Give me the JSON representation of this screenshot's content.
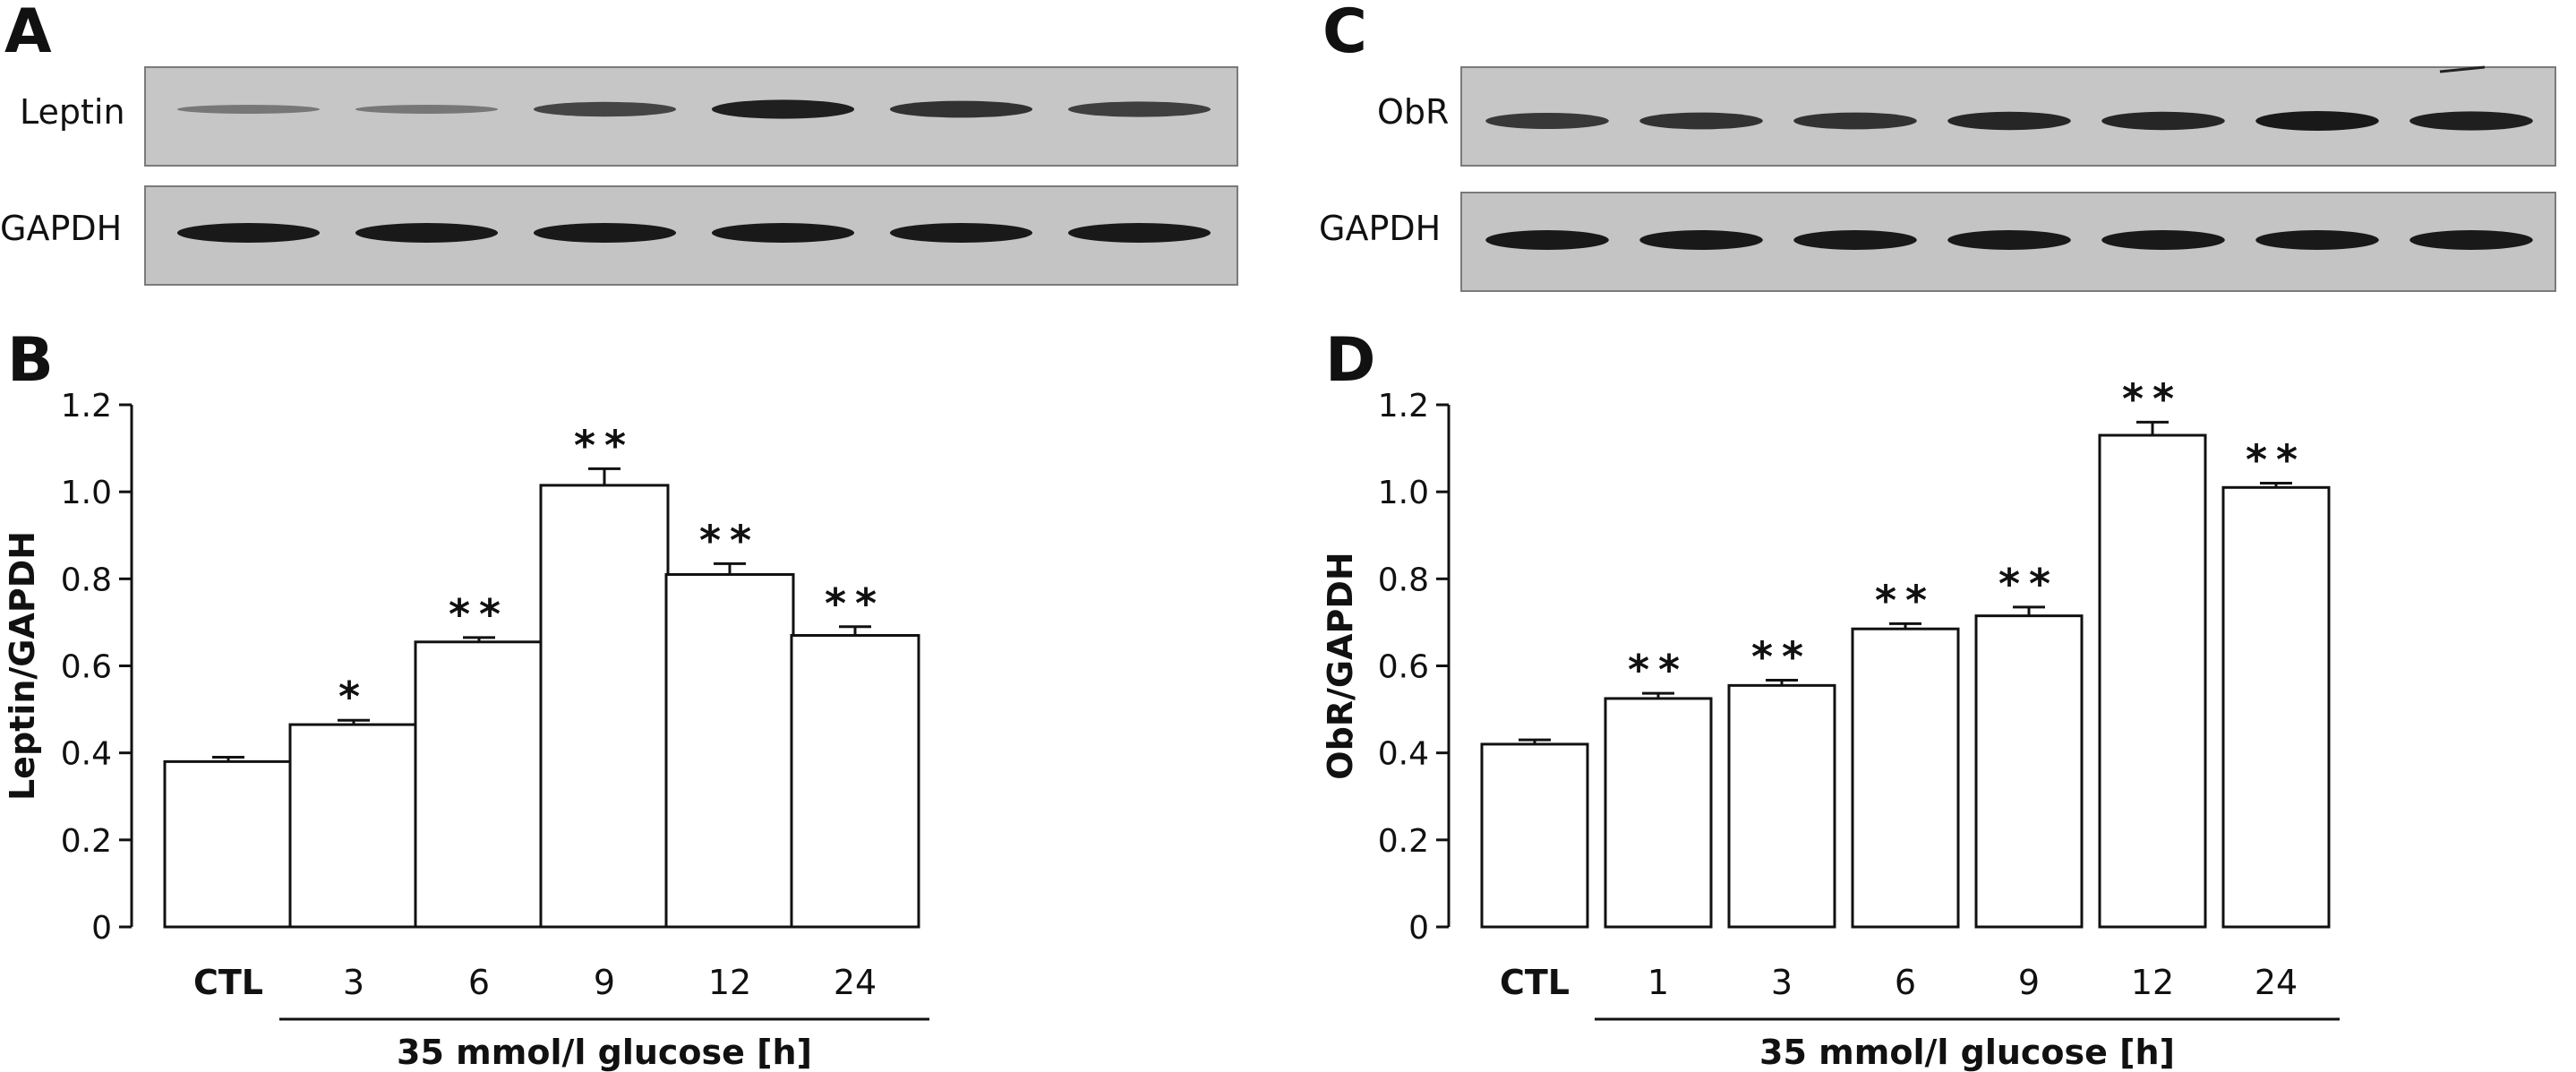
{
  "panels": [
    {
      "letter": "A",
      "blots": [
        {
          "label": "Leptin",
          "band_intensity": [
            0.25,
            0.25,
            0.65,
            0.95,
            0.8,
            0.7
          ]
        },
        {
          "label": "GAPDH",
          "band_intensity": [
            1,
            1,
            1,
            1,
            1,
            1
          ]
        }
      ]
    },
    {
      "letter": "C",
      "blots": [
        {
          "label": "ObR",
          "band_intensity": [
            0.75,
            0.8,
            0.8,
            0.9,
            0.9,
            1,
            0.95
          ]
        },
        {
          "label": "GAPDH",
          "band_intensity": [
            1,
            1,
            1,
            1,
            1,
            1,
            1
          ]
        }
      ]
    }
  ],
  "chart_data": [
    {
      "panel": "B",
      "type": "bar",
      "categories": [
        "CTL",
        "3",
        "6",
        "9",
        "12",
        "24"
      ],
      "values": [
        0.38,
        0.465,
        0.655,
        1.015,
        0.81,
        0.67
      ],
      "errors": [
        0.01,
        0.01,
        0.01,
        0.038,
        0.025,
        0.02
      ],
      "significance": [
        "",
        "*",
        "**",
        "**",
        "**",
        "**"
      ],
      "ylabel": "Leptin/GAPDH",
      "xlabel": "35 mmol/l glucose [h]",
      "yticks": [
        "0",
        "0.2",
        "0.4",
        "0.6",
        "0.8",
        "1.0",
        "1.2"
      ],
      "ylim": [
        0,
        1.2
      ]
    },
    {
      "panel": "D",
      "type": "bar",
      "categories": [
        "CTL",
        "1",
        "3",
        "6",
        "9",
        "12",
        "24"
      ],
      "values": [
        0.42,
        0.525,
        0.555,
        0.685,
        0.715,
        1.13,
        1.01
      ],
      "errors": [
        0.01,
        0.012,
        0.012,
        0.012,
        0.02,
        0.03,
        0.01
      ],
      "significance": [
        "",
        "**",
        "**",
        "**",
        "**",
        "**",
        "**"
      ],
      "ylabel": "ObR/GAPDH",
      "xlabel": "35 mmol/l glucose [h]",
      "yticks": [
        "0",
        "0.2",
        "0.4",
        "0.6",
        "0.8",
        "1.0",
        "1.2"
      ],
      "ylim": [
        0,
        1.2
      ]
    }
  ]
}
